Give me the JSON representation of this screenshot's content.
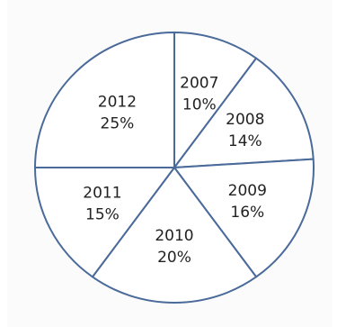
{
  "chart_data": {
    "type": "pie",
    "title": "",
    "slices": [
      {
        "label": "2007",
        "value": 10,
        "value_label": "10%"
      },
      {
        "label": "2008",
        "value": 14,
        "value_label": "14%"
      },
      {
        "label": "2009",
        "value": 16,
        "value_label": "16%"
      },
      {
        "label": "2010",
        "value": 20,
        "value_label": "20%"
      },
      {
        "label": "2011",
        "value": 15,
        "value_label": "15%"
      },
      {
        "label": "2012",
        "value": 25,
        "value_label": "25%"
      }
    ],
    "start_angle_deg": 0,
    "direction": "clockwise",
    "legend": "none",
    "colors": {
      "fill": "#ffffff",
      "edge": "#4a6a9a",
      "text": "#222222"
    }
  }
}
